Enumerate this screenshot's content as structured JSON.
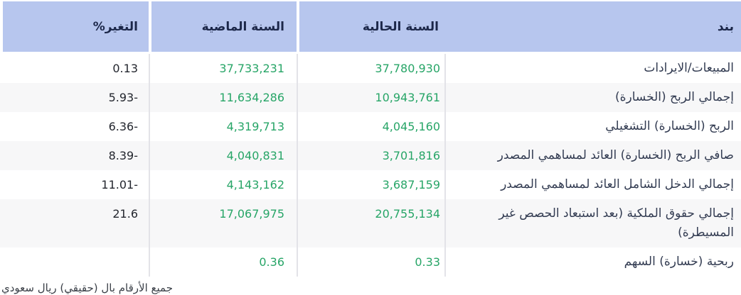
{
  "table": {
    "columns": [
      {
        "key": "item",
        "label": "بند"
      },
      {
        "key": "current_year",
        "label": "السنة الحالية"
      },
      {
        "key": "previous_year",
        "label": "السنة الماضية"
      },
      {
        "key": "change_pct",
        "label": "التغير%"
      }
    ],
    "rows": [
      {
        "item": "المبيعات/الايرادات",
        "current_year": "37,780,930",
        "previous_year": "37,733,231",
        "change_pct": "0.13"
      },
      {
        "item": "إجمالي الربح (الخسارة)",
        "current_year": "10,943,761",
        "previous_year": "11,634,286",
        "change_pct": "5.93-"
      },
      {
        "item": "الربح (الخسارة) التشغيلي",
        "current_year": "4,045,160",
        "previous_year": "4,319,713",
        "change_pct": "6.36-"
      },
      {
        "item": "صافي الربح (الخسارة) العائد لمساهمي المصدر",
        "current_year": "3,701,816",
        "previous_year": "4,040,831",
        "change_pct": "8.39-"
      },
      {
        "item": "إجمالي الدخل الشامل العائد لمساهمي المصدر",
        "current_year": "3,687,159",
        "previous_year": "4,143,162",
        "change_pct": "11.01-"
      },
      {
        "item": "إجمالي حقوق الملكية (بعد استبعاد الحصص غير المسيطرة)",
        "current_year": "20,755,134",
        "previous_year": "17,067,975",
        "change_pct": "21.6"
      },
      {
        "item": "ربحية (خسارة) السهم",
        "current_year": "0.33",
        "previous_year": "0.36",
        "change_pct": ""
      }
    ],
    "footnote": "جميع الأرقام بال (حقيقي) ريال سعودي"
  },
  "colors": {
    "header_background": "#b7c6ee",
    "header_text": "#1c2749",
    "value_green": "#27a567",
    "item_text": "#333c52",
    "stripe_gray": "#f7f7f8"
  }
}
